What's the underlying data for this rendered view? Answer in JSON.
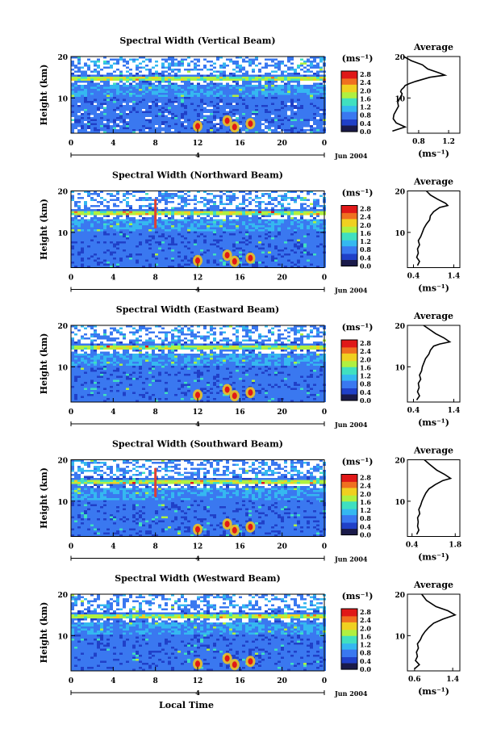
{
  "chart_data": [
    {
      "type": "heatmap",
      "title": "Spectral Width (Vertical Beam)",
      "ylabel": "Height (km)",
      "xlim": [
        0,
        24
      ],
      "ylim": [
        1.5,
        20
      ],
      "x_ticks": [
        "0",
        "4",
        "8",
        "12",
        "16",
        "20",
        "0"
      ],
      "y_ticks": [
        "20",
        "10"
      ],
      "date_marker": "4",
      "date_label": "Jun 2004",
      "colorbar": {
        "unit": "(ms⁻¹)",
        "ticks": [
          "2.8",
          "2.4",
          "2.0",
          "1.6",
          "1.2",
          "0.8",
          "0.4",
          "0.0"
        ]
      },
      "profile": {
        "title": "Average",
        "xlabel": "(ms⁻¹)",
        "x_ticks": [
          "0.8",
          "1.2"
        ],
        "y_ticks": [
          "20",
          "10"
        ],
        "x": [
          0.45,
          0.62,
          0.5,
          0.46,
          0.47,
          0.5,
          0.53,
          0.52,
          0.55,
          0.58,
          0.56,
          0.57,
          0.6,
          0.62,
          0.68,
          0.76,
          0.95,
          1.15,
          1.08,
          0.92,
          0.85,
          0.7,
          0.6
        ],
        "y": [
          2,
          3,
          4,
          5,
          6,
          7,
          8,
          9,
          10,
          11,
          11.5,
          12,
          12.5,
          13,
          13.5,
          14,
          15,
          15.5,
          16,
          17,
          18,
          19,
          20
        ]
      }
    },
    {
      "type": "heatmap",
      "title": "Spectral Width (Northward Beam)",
      "ylabel": "Height (km)",
      "xlim": [
        0,
        24
      ],
      "ylim": [
        1.5,
        20
      ],
      "x_ticks": [
        "0",
        "4",
        "8",
        "12",
        "16",
        "20",
        "0"
      ],
      "y_ticks": [
        "20",
        "10"
      ],
      "date_marker": "4",
      "date_label": "Jun 2004",
      "colorbar": {
        "unit": "(ms⁻¹)",
        "ticks": [
          "2.8",
          "2.4",
          "2.0",
          "1.6",
          "1.2",
          "0.8",
          "0.4",
          "0.0"
        ]
      },
      "profile": {
        "title": "Average",
        "xlabel": "(ms⁻¹)",
        "x_ticks": [
          "0.4",
          "1.4"
        ],
        "y_ticks": [
          "20",
          "10"
        ],
        "x": [
          0.5,
          0.55,
          0.48,
          0.52,
          0.5,
          0.55,
          0.52,
          0.58,
          0.62,
          0.66,
          0.72,
          0.8,
          0.82,
          0.9,
          1.05,
          1.25,
          1.2,
          1.0,
          0.82,
          0.72
        ],
        "y": [
          2,
          3,
          4,
          5,
          6,
          7,
          8,
          9,
          10,
          11,
          12,
          13,
          14,
          15,
          16,
          16.5,
          17,
          18,
          19,
          20
        ]
      }
    },
    {
      "type": "heatmap",
      "title": "Spectral Width (Eastward Beam)",
      "ylabel": "Height (km)",
      "xlim": [
        0,
        24
      ],
      "ylim": [
        1.5,
        20
      ],
      "x_ticks": [
        "0",
        "4",
        "8",
        "12",
        "16",
        "20",
        "0"
      ],
      "y_ticks": [
        "20",
        "10"
      ],
      "date_marker": "4",
      "date_label": "Jun 2004",
      "colorbar": {
        "unit": "(ms⁻¹)",
        "ticks": [
          "2.8",
          "2.4",
          "2.0",
          "1.6",
          "1.2",
          "0.8",
          "0.4",
          "0.0"
        ]
      },
      "profile": {
        "title": "Average",
        "xlabel": "(ms⁻¹)",
        "x_ticks": [
          "0.4",
          "1.4"
        ],
        "y_ticks": [
          "20",
          "10"
        ],
        "x": [
          0.48,
          0.55,
          0.5,
          0.54,
          0.52,
          0.58,
          0.55,
          0.6,
          0.62,
          0.66,
          0.7,
          0.78,
          0.82,
          0.9,
          1.05,
          1.3,
          1.15,
          0.95,
          0.8,
          0.65
        ],
        "y": [
          2,
          3,
          4,
          5,
          6,
          7,
          8,
          9,
          10,
          11,
          12,
          13,
          14,
          15,
          15.5,
          16,
          17,
          18,
          19,
          20
        ]
      }
    },
    {
      "type": "heatmap",
      "title": "Spectral Width (Southward Beam)",
      "ylabel": "Height (km)",
      "xlim": [
        0,
        24
      ],
      "ylim": [
        1.5,
        20
      ],
      "x_ticks": [
        "0",
        "4",
        "8",
        "12",
        "16",
        "20",
        "0"
      ],
      "y_ticks": [
        "20",
        "10"
      ],
      "date_marker": "4",
      "date_label": "Jun 2004",
      "colorbar": {
        "unit": "(ms⁻¹)",
        "ticks": [
          "2.8",
          "2.4",
          "2.0",
          "1.6",
          "1.2",
          "0.8",
          "0.4",
          "0.0"
        ]
      },
      "profile": {
        "title": "Average",
        "xlabel": "(ms⁻¹)",
        "x_ticks": [
          "0.4",
          "1.8"
        ],
        "y_ticks": [
          "20",
          "10"
        ],
        "x": [
          0.55,
          0.62,
          0.58,
          0.6,
          0.58,
          0.65,
          0.62,
          0.68,
          0.72,
          0.78,
          0.85,
          0.95,
          1.05,
          1.15,
          1.4,
          1.65,
          1.45,
          1.2,
          0.95,
          0.8
        ],
        "y": [
          2,
          3,
          4,
          5,
          6,
          7,
          8,
          9,
          10,
          11,
          12,
          13,
          13.5,
          14,
          15,
          15.5,
          16.5,
          17.5,
          19,
          20
        ]
      }
    },
    {
      "type": "heatmap",
      "title": "Spectral Width (Westward Beam)",
      "ylabel": "Height (km)",
      "xlabel": "Local Time",
      "xlim": [
        0,
        24
      ],
      "ylim": [
        1.5,
        20
      ],
      "x_ticks": [
        "0",
        "4",
        "8",
        "12",
        "16",
        "20",
        "0"
      ],
      "y_ticks": [
        "20",
        "10"
      ],
      "date_marker": "4",
      "date_label": "Jun 2004",
      "colorbar": {
        "unit": "(ms⁻¹)",
        "ticks": [
          "2.8",
          "2.4",
          "2.0",
          "1.6",
          "1.2",
          "0.8",
          "0.4",
          "0.0"
        ]
      },
      "profile": {
        "title": "Average",
        "xlabel": "(ms⁻¹)",
        "x_ticks": [
          "0.6",
          "1.4"
        ],
        "y_ticks": [
          "20",
          "10"
        ],
        "x": [
          0.6,
          0.7,
          0.62,
          0.66,
          0.64,
          0.68,
          0.66,
          0.72,
          0.76,
          0.82,
          0.9,
          1.0,
          1.2,
          1.45,
          1.3,
          1.05,
          0.85,
          0.75
        ],
        "y": [
          2,
          3,
          4,
          5,
          6,
          7,
          8,
          9,
          10,
          11,
          12,
          13,
          14,
          15,
          16,
          17,
          18.5,
          20
        ]
      }
    }
  ],
  "colors": {
    "scale": [
      "#1a1a4a",
      "#2040c8",
      "#3a78f0",
      "#35b8f0",
      "#40e0c0",
      "#b0f040",
      "#f0d020",
      "#f07020",
      "#e01818"
    ]
  }
}
